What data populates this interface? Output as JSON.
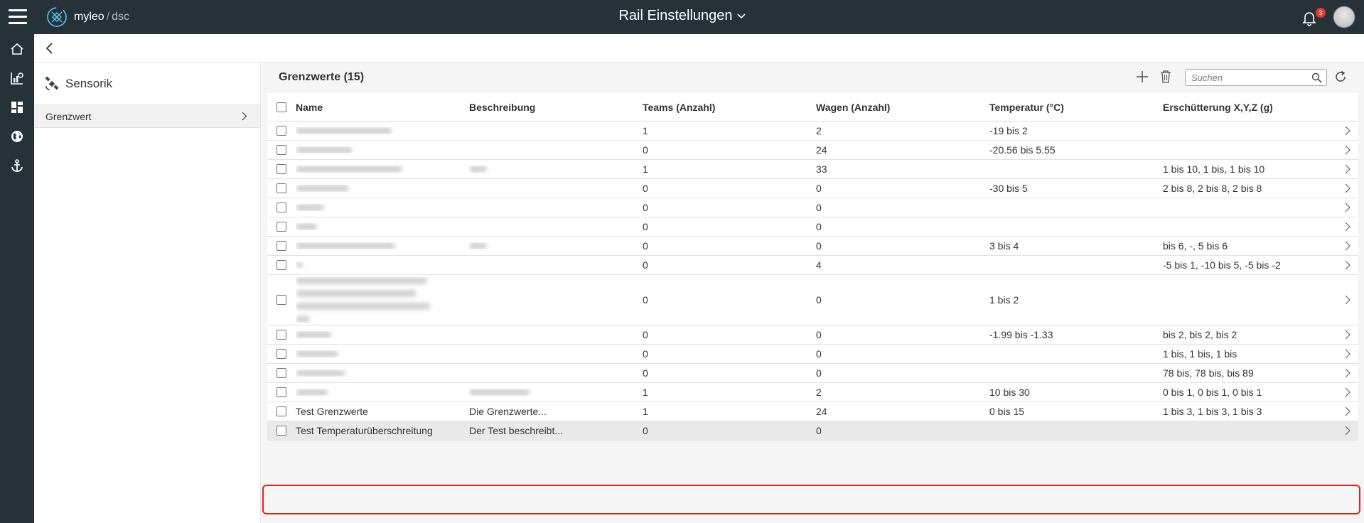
{
  "app": {
    "logo_brand": "myleo",
    "logo_sep": "/",
    "logo_product": "dsc",
    "title": "Rail Einstellungen",
    "notification_count": "3"
  },
  "sidebar": {
    "title": "Sensorik",
    "items": [
      {
        "label": "Grenzwert"
      }
    ]
  },
  "main": {
    "title": "Grenzwerte (15)",
    "search_placeholder": "Suchen"
  },
  "table": {
    "columns": [
      "Name",
      "Beschreibung",
      "Teams (Anzahl)",
      "Wagen (Anzahl)",
      "Temperatur (°C)",
      "Erschütterung X,Y,Z (g)"
    ],
    "rows": [
      {
        "name": "",
        "description": "",
        "teams": "1",
        "wagen": "2",
        "temperatur": "-19 bis 2",
        "erschuetterung": ""
      },
      {
        "name": "",
        "description": "",
        "teams": "0",
        "wagen": "24",
        "temperatur": "-20.56 bis 5.55",
        "erschuetterung": ""
      },
      {
        "name": "",
        "description": "",
        "teams": "1",
        "wagen": "33",
        "temperatur": "",
        "erschuetterung": "1 bis 10, 1 bis, 1 bis 10"
      },
      {
        "name": "",
        "description": "",
        "teams": "0",
        "wagen": "0",
        "temperatur": "-30 bis 5",
        "erschuetterung": "2 bis 8, 2 bis 8, 2 bis 8"
      },
      {
        "name": "",
        "description": "",
        "teams": "0",
        "wagen": "0",
        "temperatur": "",
        "erschuetterung": ""
      },
      {
        "name": "",
        "description": "",
        "teams": "0",
        "wagen": "0",
        "temperatur": "",
        "erschuetterung": ""
      },
      {
        "name": "",
        "description": "",
        "teams": "0",
        "wagen": "0",
        "temperatur": "3 bis 4",
        "erschuetterung": "bis 6, -, 5 bis 6"
      },
      {
        "name": "",
        "description": "",
        "teams": "0",
        "wagen": "4",
        "temperatur": "",
        "erschuetterung": "-5 bis 1, -10 bis 5, -5 bis -2"
      },
      {
        "name": "",
        "description": "",
        "teams": "0",
        "wagen": "0",
        "temperatur": "1 bis 2",
        "erschuetterung": ""
      },
      {
        "name": "",
        "description": "",
        "teams": "0",
        "wagen": "0",
        "temperatur": "-1.99 bis -1.33",
        "erschuetterung": "bis 2, bis 2, bis 2"
      },
      {
        "name": "",
        "description": "",
        "teams": "0",
        "wagen": "0",
        "temperatur": "",
        "erschuetterung": "1 bis, 1 bis, 1 bis"
      },
      {
        "name": "",
        "description": "",
        "teams": "0",
        "wagen": "0",
        "temperatur": "",
        "erschuetterung": "78 bis, 78 bis, bis 89"
      },
      {
        "name": "",
        "description": "",
        "teams": "1",
        "wagen": "2",
        "temperatur": "10 bis 30",
        "erschuetterung": "0 bis 1, 0 bis 1, 0 bis 1"
      },
      {
        "name": "Test Grenzwerte",
        "description": "Die Grenzwerte...",
        "teams": "1",
        "wagen": "24",
        "temperatur": "0 bis 15",
        "erschuetterung": "1 bis 3, 1 bis 3, 1 bis 3"
      },
      {
        "name": "Test Temperaturüberschreitung",
        "description": "Der Test beschreibt...",
        "teams": "0",
        "wagen": "0",
        "temperatur": "",
        "erschuetterung": ""
      }
    ]
  },
  "colors": {
    "topbar": "#263238",
    "selected_row": "#e9e9e9",
    "highlight_border": "#e32219",
    "badge": "#e53935"
  }
}
